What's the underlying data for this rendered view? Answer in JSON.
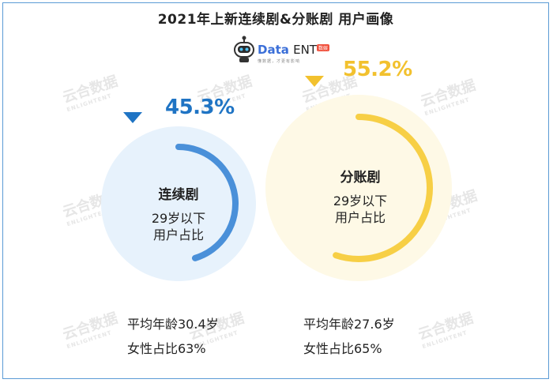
{
  "title": "2021年上新连续剧&分账剧 用户画像",
  "brand": {
    "name_a": "Data",
    "name_b": "ENT",
    "badge": "数娱",
    "sub": "懂数据，才更有影响"
  },
  "watermark": {
    "text": "云合数据",
    "sub": "ENLIGHTENT"
  },
  "colors": {
    "serial": "#4a90d9",
    "serial_fill": "#e7f2fc",
    "split": "#f7cf45",
    "split_fill": "#fef9e6",
    "serial_pct": "#1f74c4",
    "split_pct": "#f2c12e"
  },
  "chart_data": {
    "type": "pie",
    "title": "2021年上新连续剧&分账剧 用户画像",
    "categories": [
      "连续剧",
      "分账剧"
    ],
    "series": [
      {
        "name": "连续剧",
        "value": 45.3,
        "value_label": "45.3%",
        "desc_line1": "29岁以下",
        "desc_line2": "用户占比",
        "avg_age": "平均年龄30.4岁",
        "female": "女性占比63%"
      },
      {
        "name": "分账剧",
        "value": 55.2,
        "value_label": "55.2%",
        "desc_line1": "29岁以下",
        "desc_line2": "用户占比",
        "avg_age": "平均年龄27.6岁",
        "female": "女性占比65%"
      }
    ]
  }
}
